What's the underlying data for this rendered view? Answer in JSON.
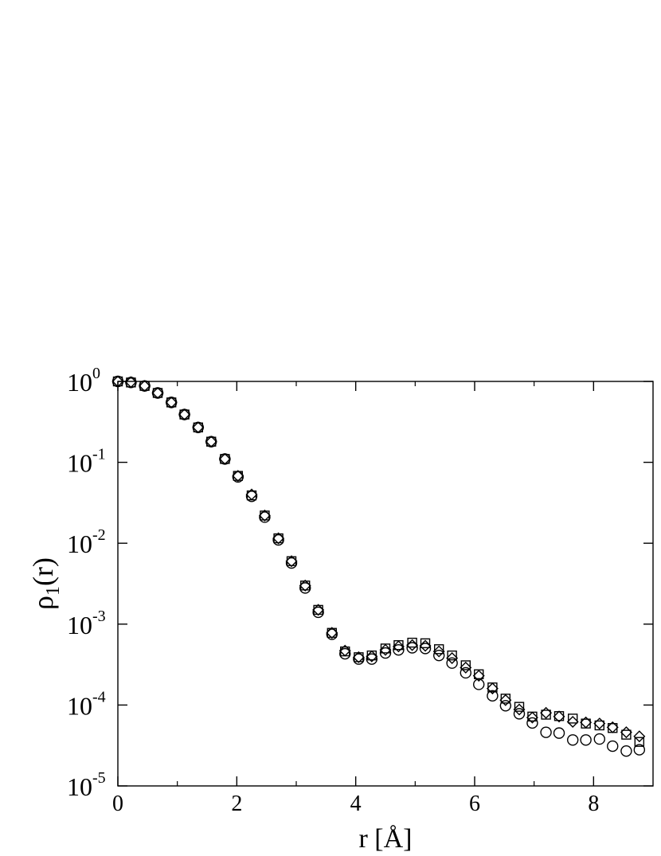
{
  "chart_data": {
    "type": "scatter",
    "xlabel": "r [Å]",
    "ylabel": {
      "base": "ρ",
      "sub": "1",
      "suffix": "(r)"
    },
    "xlim": [
      0,
      9
    ],
    "ylim": [
      1e-05,
      1
    ],
    "yscale": "log",
    "grid": false,
    "x_ticks": [
      {
        "value": 0,
        "label": "0"
      },
      {
        "value": 2,
        "label": "2"
      },
      {
        "value": 4,
        "label": "4"
      },
      {
        "value": 6,
        "label": "6"
      },
      {
        "value": 8,
        "label": "8"
      }
    ],
    "y_ticks": [
      {
        "value": 1,
        "base": "10",
        "exp": "0"
      },
      {
        "value": 0.1,
        "base": "10",
        "exp": "-1"
      },
      {
        "value": 0.01,
        "base": "10",
        "exp": "-2"
      },
      {
        "value": 0.001,
        "base": "10",
        "exp": "-3"
      },
      {
        "value": 0.0001,
        "base": "10",
        "exp": "-4"
      },
      {
        "value": 1e-05,
        "base": "10",
        "exp": "-5"
      }
    ],
    "x": [
      0.0,
      0.22,
      0.45,
      0.67,
      0.9,
      1.12,
      1.35,
      1.57,
      1.8,
      2.02,
      2.25,
      2.47,
      2.7,
      2.92,
      3.15,
      3.37,
      3.6,
      3.82,
      4.05,
      4.27,
      4.5,
      4.72,
      4.95,
      5.17,
      5.4,
      5.62,
      5.85,
      6.07,
      6.3,
      6.52,
      6.75,
      6.97,
      7.2,
      7.42,
      7.65,
      7.87,
      8.1,
      8.32,
      8.55,
      8.77
    ],
    "series": [
      {
        "marker": "circle",
        "values": [
          1.0,
          0.97,
          0.88,
          0.72,
          0.55,
          0.39,
          0.27,
          0.18,
          0.11,
          0.066,
          0.038,
          0.021,
          0.011,
          0.0057,
          0.0028,
          0.0014,
          0.00075,
          0.00043,
          0.00037,
          0.00037,
          0.00044,
          0.00048,
          0.00051,
          0.0005,
          0.00041,
          0.00033,
          0.00025,
          0.00018,
          0.00013,
          9.8e-05,
          7.8e-05,
          6e-05,
          4.6e-05,
          4.5e-05,
          3.7e-05,
          3.7e-05,
          3.8e-05,
          3.1e-05,
          2.7e-05,
          2.8e-05
        ]
      },
      {
        "marker": "square",
        "values": [
          1.0,
          0.97,
          0.88,
          0.72,
          0.55,
          0.39,
          0.27,
          0.18,
          0.11,
          0.068,
          0.039,
          0.022,
          0.0115,
          0.006,
          0.003,
          0.0015,
          0.00078,
          0.00046,
          0.00039,
          0.00041,
          0.0005,
          0.00055,
          0.00059,
          0.00058,
          0.00049,
          0.00041,
          0.00031,
          0.00024,
          0.000165,
          0.00012,
          9.5e-05,
          7.2e-05,
          7.6e-05,
          7.3e-05,
          6.8e-05,
          5.9e-05,
          5.6e-05,
          5.2e-05,
          4.3e-05,
          3.5e-05
        ]
      },
      {
        "marker": "diamond",
        "values": [
          1.0,
          0.98,
          0.88,
          0.72,
          0.55,
          0.39,
          0.27,
          0.18,
          0.11,
          0.068,
          0.04,
          0.022,
          0.0115,
          0.006,
          0.003,
          0.0015,
          0.00078,
          0.00047,
          0.00039,
          0.0004,
          0.00048,
          0.00053,
          0.00055,
          0.00054,
          0.00046,
          0.00038,
          0.00029,
          0.00023,
          0.00016,
          0.000115,
          8.8e-05,
          7e-05,
          8e-05,
          7.2e-05,
          6.2e-05,
          6.1e-05,
          5.9e-05,
          5.3e-05,
          4.6e-05,
          4.1e-05
        ]
      }
    ]
  }
}
